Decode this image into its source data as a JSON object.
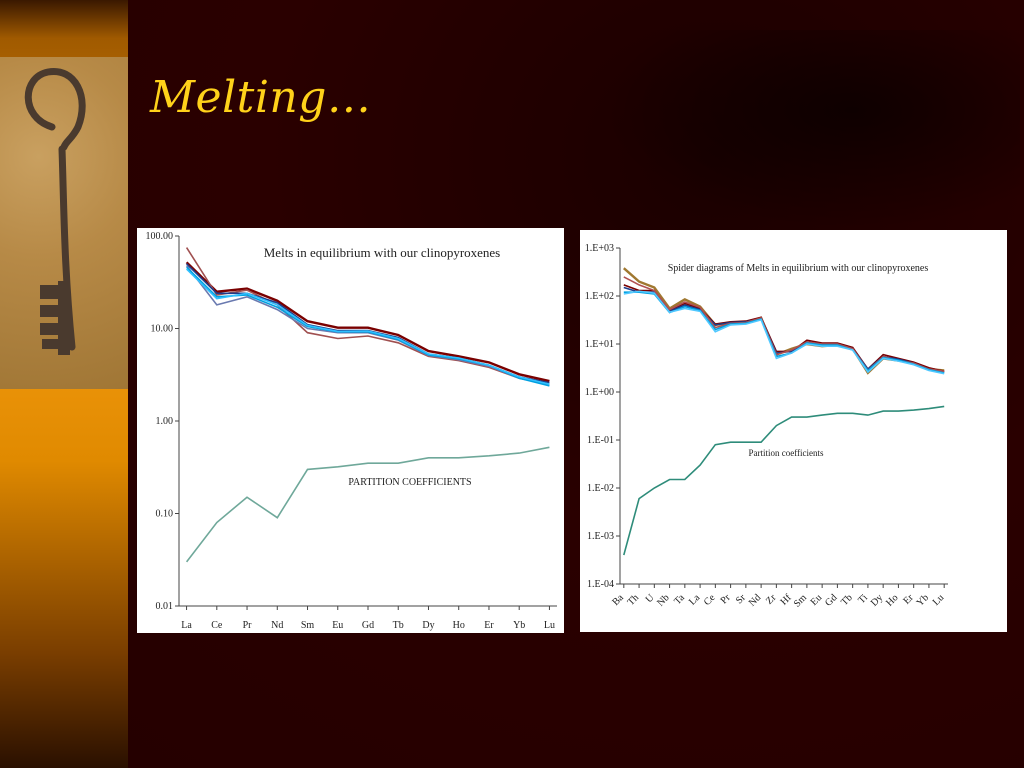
{
  "slide": {
    "title": "Melting…",
    "key_photo_icon": "antique-key-icon"
  },
  "chart_data": [
    {
      "type": "line",
      "title": "Melts in equilibrium with our clinopyroxenes",
      "annotation": "PARTITION COEFFICIENTS",
      "scale": "log",
      "ylim": [
        0.01,
        100
      ],
      "yticks": [
        "100.00",
        "10.00",
        "1.00",
        "0.10",
        "0.01"
      ],
      "categories": [
        "La",
        "Ce",
        "Pr",
        "Nd",
        "Sm",
        "Eu",
        "Gd",
        "Tb",
        "Dy",
        "Ho",
        "Er",
        "Yb",
        "Lu"
      ],
      "grid": false,
      "series": [
        {
          "color": "#7a0000",
          "values": [
            52,
            25,
            27,
            20,
            12,
            10.2,
            10.2,
            8.5,
            5.7,
            5.0,
            4.3,
            3.2,
            2.7
          ]
        },
        {
          "color": "#a05050",
          "values": [
            75,
            23,
            26,
            18,
            9.0,
            7.8,
            8.3,
            7.0,
            5.0,
            4.5,
            3.8,
            2.9,
            2.5
          ]
        },
        {
          "color": "#1e3c8a",
          "values": [
            50,
            24,
            24,
            19,
            11,
            9.5,
            9.5,
            8.0,
            5.3,
            4.8,
            4.0,
            3.0,
            2.6
          ]
        },
        {
          "color": "#6a7ab0",
          "values": [
            48,
            18,
            22,
            16,
            10,
            9.0,
            9.0,
            7.5,
            5.1,
            4.6,
            3.9,
            2.9,
            2.5
          ]
        },
        {
          "color": "#00a0e0",
          "values": [
            46,
            22,
            23,
            17,
            10.5,
            9.2,
            9.2,
            7.6,
            5.2,
            4.7,
            4.0,
            2.9,
            2.4
          ]
        },
        {
          "color": "#30c0ff",
          "values": [
            44,
            21,
            24,
            18,
            10.8,
            9.3,
            9.4,
            7.8,
            5.3,
            4.8,
            4.0,
            3.0,
            2.5
          ]
        },
        {
          "color": "#6fa89a",
          "values": [
            0.03,
            0.08,
            0.15,
            0.09,
            0.3,
            0.32,
            0.35,
            0.35,
            0.4,
            0.4,
            0.42,
            0.45,
            0.52
          ]
        }
      ]
    },
    {
      "type": "line",
      "title": "Spider diagrams of Melts in equilibrium with our clinopyroxenes",
      "annotation": "Partition coefficients",
      "scale": "log",
      "ylim": [
        0.0001,
        1000
      ],
      "yticks": [
        "1.E+03",
        "1.E+02",
        "1.E+01",
        "1.E+00",
        "1.E-01",
        "1.E-02",
        "1.E-03",
        "1.E-04"
      ],
      "categories": [
        "Ba",
        "Th",
        "U",
        "Nb",
        "Ta",
        "La",
        "Ce",
        "Pr",
        "Sr",
        "Nd",
        "Zr",
        "Hf",
        "Sm",
        "Eu",
        "Gd",
        "Tb",
        "Ti",
        "Dy",
        "Ho",
        "Er",
        "Yb",
        "Lu"
      ],
      "grid": false,
      "series": [
        {
          "color": "#a07830",
          "values": [
            380,
            200,
            150,
            55,
            85,
            60,
            25,
            28,
            28,
            35,
            6,
            8,
            10,
            9,
            9.5,
            8,
            2.5,
            5,
            4.5,
            4,
            3,
            2.8
          ]
        },
        {
          "color": "#7a0000",
          "values": [
            170,
            130,
            130,
            50,
            70,
            55,
            26,
            29,
            30,
            36,
            7,
            7,
            12,
            10.5,
            10.5,
            8.5,
            3,
            6,
            5,
            4.2,
            3.2,
            2.7
          ]
        },
        {
          "color": "#1e3c8a",
          "values": [
            150,
            120,
            120,
            48,
            65,
            52,
            25,
            28,
            29,
            34,
            6.5,
            7,
            11,
            10,
            10,
            8,
            3,
            5.5,
            4.8,
            4,
            3,
            2.6
          ]
        },
        {
          "color": "#b05050",
          "values": [
            250,
            170,
            130,
            52,
            75,
            58,
            22,
            27,
            28,
            35,
            6,
            7.5,
            11,
            10,
            10,
            8,
            2.8,
            5.5,
            4.5,
            4,
            3,
            2.7
          ]
        },
        {
          "color": "#00a0e0",
          "values": [
            120,
            120,
            110,
            45,
            60,
            50,
            20,
            26,
            27,
            33,
            5.5,
            6.5,
            10.5,
            9.5,
            9.5,
            7.5,
            2.8,
            5.2,
            4.6,
            3.8,
            2.9,
            2.5
          ]
        },
        {
          "color": "#50c8ff",
          "values": [
            110,
            125,
            115,
            46,
            55,
            48,
            18,
            25,
            26,
            32,
            5.0,
            6.5,
            10,
            9,
            9,
            7.5,
            2.6,
            5.0,
            4.4,
            3.7,
            2.8,
            2.4
          ]
        },
        {
          "color": "#2e8c7a",
          "values": [
            0.0004,
            0.006,
            0.01,
            0.015,
            0.015,
            0.03,
            0.08,
            0.09,
            0.09,
            0.09,
            0.2,
            0.3,
            0.3,
            0.33,
            0.36,
            0.36,
            0.33,
            0.4,
            0.4,
            0.42,
            0.45,
            0.5
          ]
        }
      ]
    }
  ]
}
